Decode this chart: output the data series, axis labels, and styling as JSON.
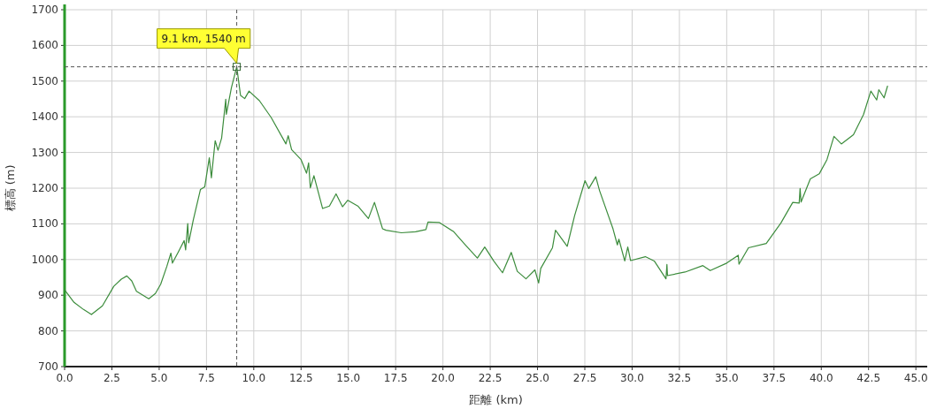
{
  "chart_data": {
    "type": "line",
    "xlabel": "距離 (km)",
    "ylabel": "標高 (m)",
    "series": [
      {
        "color": "#3c8c3c",
        "x": [
          0,
          0.5,
          1.0,
          1.42,
          2.0,
          2.6,
          3.0,
          3.29,
          3.55,
          3.8,
          4.45,
          4.8,
          5.08,
          5.4,
          5.62,
          5.7,
          6.0,
          6.32,
          6.4,
          6.51,
          6.56,
          6.8,
          7.18,
          7.41,
          7.65,
          7.76,
          7.96,
          8.11,
          8.3,
          8.52,
          8.55,
          8.82,
          9.1,
          9.3,
          9.52,
          9.75,
          10.3,
          10.92,
          11.7,
          11.82,
          12.0,
          12.5,
          12.79,
          12.9,
          12.99,
          13.18,
          13.64,
          14.0,
          14.35,
          14.69,
          14.97,
          15.5,
          16.06,
          16.38,
          16.81,
          16.99,
          17.8,
          18.55,
          19.1,
          19.21,
          19.8,
          20.57,
          21.2,
          21.82,
          22.21,
          22.7,
          23.15,
          23.61,
          23.93,
          24.39,
          24.86,
          25.06,
          25.17,
          25.79,
          25.95,
          26.57,
          26.96,
          27.51,
          27.71,
          28.08,
          28.28,
          28.99,
          29.22,
          29.3,
          29.61,
          29.77,
          29.92,
          30.7,
          31.17,
          31.79,
          31.84,
          31.87,
          32.8,
          33.74,
          34.13,
          35.0,
          35.61,
          35.65,
          36.15,
          37.09,
          37.86,
          38.49,
          38.83,
          38.88,
          38.93,
          39.42,
          39.89,
          40.3,
          40.67,
          41.06,
          41.7,
          42.23,
          42.62,
          42.93,
          43.04,
          43.32,
          43.5
        ],
        "values": [
          915,
          880,
          860,
          846,
          870,
          925,
          945,
          954,
          940,
          911,
          890,
          905,
          931,
          980,
          1018,
          990,
          1020,
          1053,
          1027,
          1101,
          1047,
          1110,
          1196,
          1204,
          1285,
          1229,
          1333,
          1306,
          1340,
          1449,
          1407,
          1482,
          1540,
          1460,
          1451,
          1472,
          1445,
          1398,
          1324,
          1347,
          1308,
          1280,
          1242,
          1271,
          1201,
          1235,
          1143,
          1150,
          1184,
          1148,
          1166,
          1150,
          1115,
          1160,
          1086,
          1082,
          1075,
          1078,
          1084,
          1105,
          1104,
          1078,
          1040,
          1004,
          1035,
          995,
          963,
          1020,
          967,
          946,
          971,
          934,
          975,
          1033,
          1082,
          1037,
          1123,
          1221,
          1199,
          1232,
          1193,
          1086,
          1041,
          1057,
          996,
          1035,
          997,
          1008,
          996,
          946,
          986,
          955,
          965,
          983,
          969,
          990,
          1012,
          987,
          1033,
          1045,
          1102,
          1160,
          1158,
          1199,
          1161,
          1226,
          1240,
          1280,
          1345,
          1324,
          1350,
          1406,
          1472,
          1447,
          1476,
          1453,
          1486
        ]
      }
    ],
    "xlim": [
      0,
      45.6
    ],
    "ylim": [
      700,
      1700
    ],
    "xticks": [
      {
        "value": 0,
        "label": "0.0"
      },
      {
        "value": 2.5,
        "label": "2.5"
      },
      {
        "value": 5,
        "label": "5.0"
      },
      {
        "value": 7.5,
        "label": "7.5"
      },
      {
        "value": 10,
        "label": "10.0"
      },
      {
        "value": 12.5,
        "label": "12.5"
      },
      {
        "value": 15,
        "label": "15.0"
      },
      {
        "value": 17.5,
        "label": "17.5"
      },
      {
        "value": 20,
        "label": "20.0"
      },
      {
        "value": 22.5,
        "label": "22.5"
      },
      {
        "value": 25,
        "label": "25.0"
      },
      {
        "value": 27.5,
        "label": "27.5"
      },
      {
        "value": 30,
        "label": "30.0"
      },
      {
        "value": 32.5,
        "label": "32.5"
      },
      {
        "value": 35,
        "label": "35.0"
      },
      {
        "value": 37.5,
        "label": "37.5"
      },
      {
        "value": 40,
        "label": "40.0"
      },
      {
        "value": 42.5,
        "label": "42.5"
      },
      {
        "value": 45,
        "label": "45.0"
      }
    ],
    "yticks": [
      700,
      800,
      900,
      1000,
      1100,
      1200,
      1300,
      1400,
      1500,
      1600,
      1700
    ],
    "grid": true,
    "marker": "none",
    "line_style": "solid",
    "ref_lines": [
      {
        "axis": "x",
        "value": 9.1,
        "color": "#555555",
        "line_style": "dashed"
      },
      {
        "axis": "y",
        "value": 1540,
        "color": "#555555",
        "line_style": "dashed"
      }
    ],
    "annotations": [
      {
        "text": "9.1 km, 1540 m",
        "x": 9.1,
        "y": 1540
      }
    ]
  }
}
